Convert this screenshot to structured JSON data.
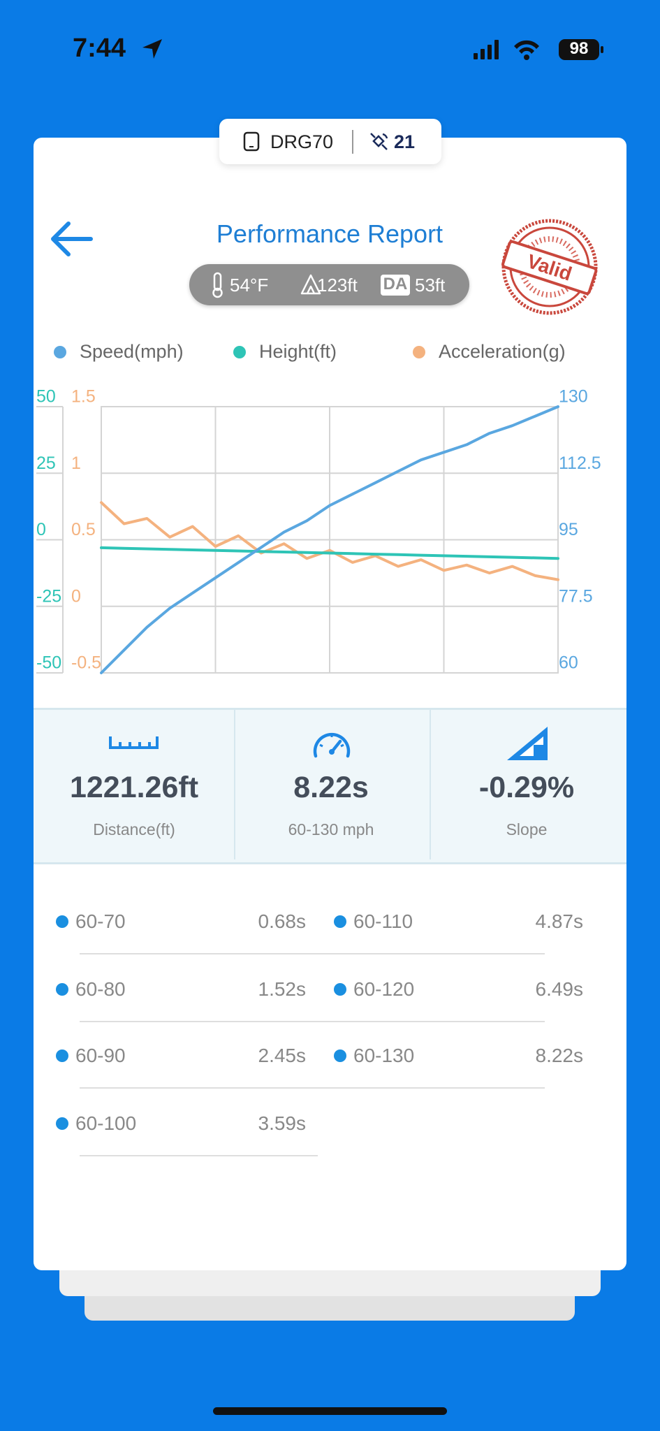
{
  "status_bar": {
    "time": "7:44",
    "battery": "98"
  },
  "device_badge": {
    "device": "DRG70",
    "count": "21"
  },
  "header": {
    "title": "Performance Report",
    "stamp": "Valid",
    "conditions": {
      "temperature": "54°F",
      "altitude": "123ft",
      "da_label": "DA",
      "density_altitude": "53ft"
    }
  },
  "chart_data": {
    "type": "line",
    "legend": "top",
    "grid": true,
    "ylim": [
      -50,
      50
    ],
    "yticks": [
      -50,
      -25,
      0,
      25,
      50
    ],
    "y2lim": [
      60,
      130
    ],
    "y2ticks": [
      60,
      77.5,
      95,
      112.5,
      130
    ],
    "y3lim": [
      -0.5,
      1.5
    ],
    "y3ticks": [
      -0.5,
      0,
      0.5,
      1,
      1.5
    ],
    "series": [
      {
        "name": "Speed(mph)",
        "color": "#5aa7e0",
        "axis": "y2",
        "values": [
          60,
          66,
          72,
          77,
          81,
          85,
          89,
          93,
          97,
          100,
          104,
          107,
          110,
          113,
          116,
          118,
          120,
          123,
          125,
          127.5,
          130
        ]
      },
      {
        "name": "Height(ft)",
        "color": "#2ec4b6",
        "axis": "y",
        "values": [
          -3,
          -3.2,
          -3.4,
          -3.6,
          -3.8,
          -4,
          -4.2,
          -4.4,
          -4.6,
          -4.8,
          -5,
          -5.2,
          -5.4,
          -5.6,
          -5.8,
          -6,
          -6.2,
          -6.4,
          -6.6,
          -6.8,
          -7
        ]
      },
      {
        "name": "Acceleration(g)",
        "color": "#f4b27f",
        "axis": "y3",
        "values": [
          0.78,
          0.62,
          0.66,
          0.52,
          0.6,
          0.45,
          0.53,
          0.4,
          0.47,
          0.36,
          0.42,
          0.33,
          0.38,
          0.3,
          0.35,
          0.27,
          0.31,
          0.25,
          0.3,
          0.23,
          0.2
        ]
      }
    ]
  },
  "summary": [
    {
      "value": "1221.26ft",
      "label": "Distance(ft)"
    },
    {
      "value": "8.22s",
      "label": "60-130 mph"
    },
    {
      "value": "-0.29%",
      "label": "Slope"
    }
  ],
  "splits": [
    {
      "range": "60-70",
      "time": "0.68s"
    },
    {
      "range": "60-80",
      "time": "1.52s"
    },
    {
      "range": "60-90",
      "time": "2.45s"
    },
    {
      "range": "60-100",
      "time": "3.59s"
    },
    {
      "range": "60-110",
      "time": "4.87s"
    },
    {
      "range": "60-120",
      "time": "6.49s"
    },
    {
      "range": "60-130",
      "time": "8.22s"
    }
  ]
}
